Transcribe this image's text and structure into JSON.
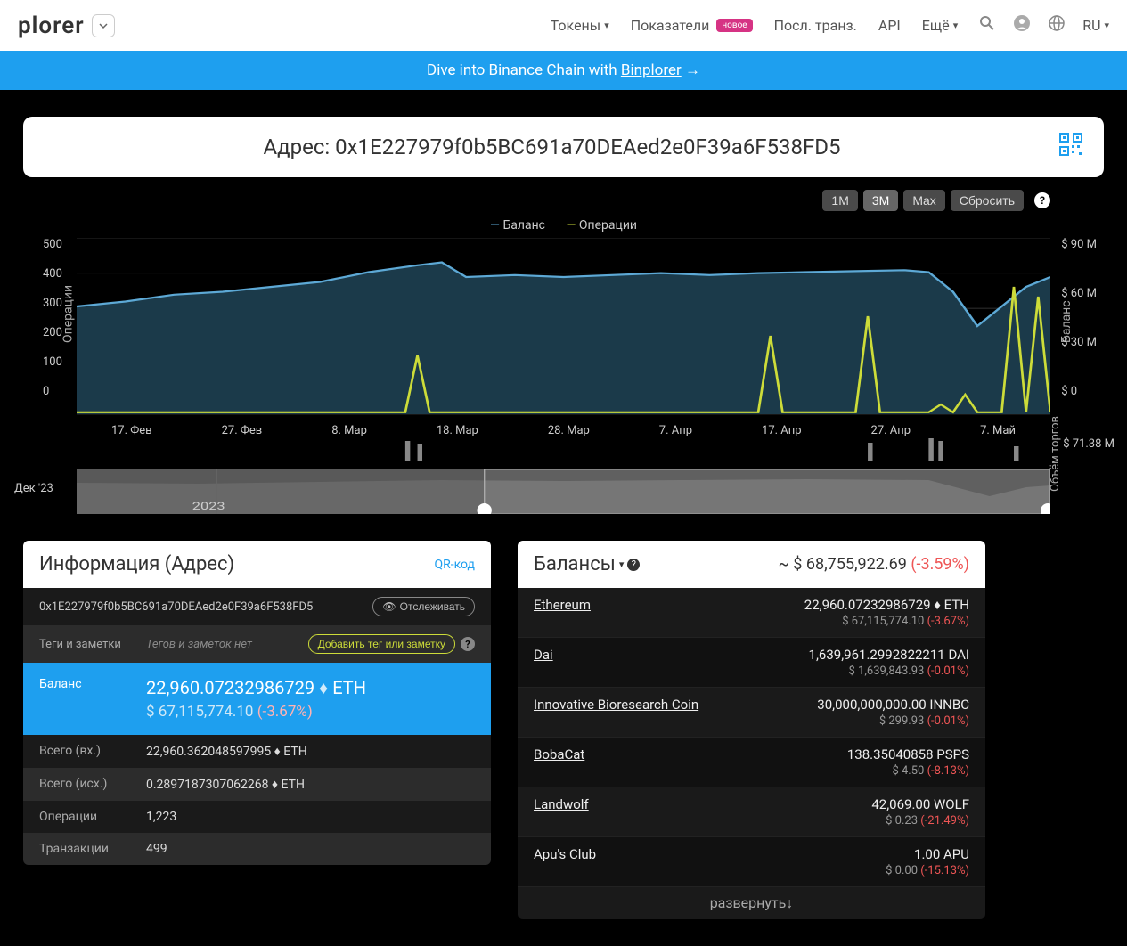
{
  "nav": {
    "logo": "plorer",
    "items": [
      "Токены",
      "Показатели",
      "Посл. транз.",
      "API",
      "Ещё"
    ],
    "badge": "новое",
    "lang": "RU"
  },
  "banner": {
    "text": "Dive into Binance Chain with ",
    "link": "Binplorer"
  },
  "address": {
    "label": "Адрес:",
    "value": "0x1E227979f0b5BC691a70DEAed2e0F39a6F538FD5"
  },
  "chart": {
    "buttons": [
      "1M",
      "3M",
      "Max",
      "Сбросить"
    ],
    "active_button": "3M",
    "legend": {
      "balance": "Баланс",
      "ops": "Операции"
    },
    "y_left_label": "Операции",
    "y_right_label": "Баланс",
    "y_left_ticks": [
      "500",
      "400",
      "300",
      "200",
      "100",
      "0"
    ],
    "y_right_ticks": [
      "$ 90 M",
      "$ 60 M",
      "$ 30 M",
      "$ 0"
    ],
    "x_ticks": [
      "17. Фев",
      "27. Фев",
      "8. Мар",
      "18. Мар",
      "28. Мар",
      "7. Апр",
      "17. Апр",
      "27. Апр",
      "7. Май"
    ],
    "volume_tick": "$ 71.38 M",
    "volume_label": "Объём торгов",
    "navigator_label": "Дек '23",
    "navigator_year": "2023",
    "colors": {
      "balance_line": "#5da9d6",
      "balance_fill": "#1b3a4a",
      "ops_line": "#cddc39",
      "grid": "#2a2a2a",
      "nav_bg": "#555",
      "nav_mask": "#888"
    }
  },
  "info": {
    "title": "Информация (Адрес)",
    "qr_link": "QR-код",
    "address": "0x1E227979f0b5BC691a70DEAed2e0F39a6F538FD5",
    "track_btn": "Отслеживать",
    "tags_label": "Теги и заметки",
    "tags_none": "Тегов и заметок нет",
    "add_tag_btn": "Добавить тег или заметку",
    "balance_label": "Баланс",
    "balance_eth": "22,960.07232986729",
    "balance_sym": "ETH",
    "balance_usd": "$ 67,115,774.10",
    "balance_pct": "(-3.67%)",
    "rows": [
      {
        "label": "Всего (вх.)",
        "value": "22,960.362048597995 ♦ ETH"
      },
      {
        "label": "Всего (исх.)",
        "value": "0.2897187307062268 ♦ ETH"
      },
      {
        "label": "Операции",
        "value": "1,223"
      },
      {
        "label": "Транзакции",
        "value": "499"
      }
    ]
  },
  "balances": {
    "title": "Балансы",
    "total": "~ $ 68,755,922.69",
    "total_pct": "(-3.59%)",
    "items": [
      {
        "name": "Ethereum",
        "amount": "22,960.07232986729 ♦ ETH",
        "usd": "$ 67,115,774.10",
        "pct": "(-3.67%)"
      },
      {
        "name": "Dai",
        "amount": "1,639,961.2992822211 DAI",
        "usd": "$ 1,639,843.93",
        "pct": "(-0.01%)"
      },
      {
        "name": "Innovative Bioresearch Coin",
        "amount": "30,000,000,000.00 INNBC",
        "usd": "$ 299.93",
        "pct": "(-0.01%)"
      },
      {
        "name": "BobaCat",
        "amount": "138.35040858 PSPS",
        "usd": "$ 4.50",
        "pct": "(-8.13%)"
      },
      {
        "name": "Landwolf",
        "amount": "42,069.00 WOLF",
        "usd": "$ 0.23",
        "pct": "(-21.49%)"
      },
      {
        "name": "Apu's Club",
        "amount": "1.00 APU",
        "usd": "$ 0.00",
        "pct": "(-15.13%)"
      }
    ],
    "expand": "развернуть↓"
  }
}
